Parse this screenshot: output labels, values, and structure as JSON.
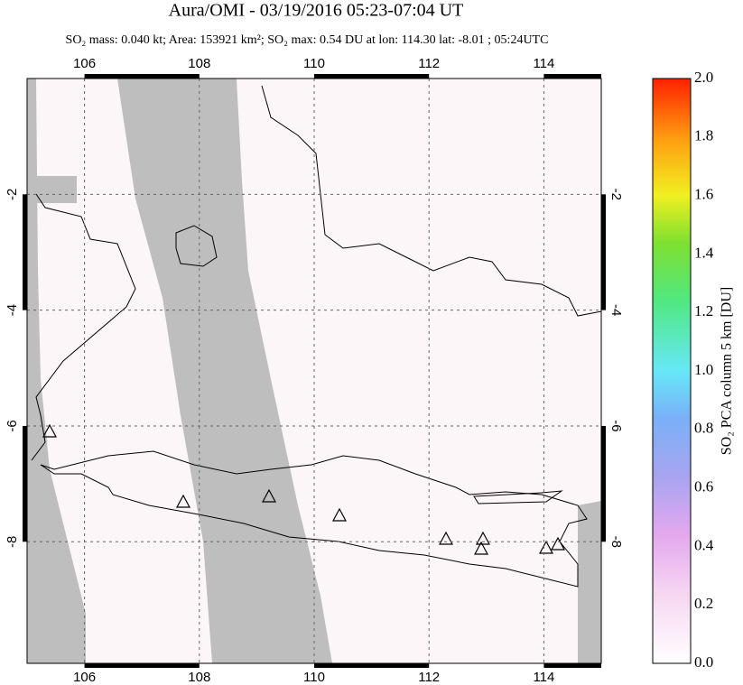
{
  "header": {
    "title": "Aura/OMI - 03/19/2016 05:23-07:04 UT",
    "subtitle": "SO₂ mass: 0.040 kt; Area: 153921 km²; SO₂ max: 0.54 DU at lon: 114.30 lat: -8.01 ; 05:24UTC"
  },
  "map": {
    "xlim": [
      105,
      115
    ],
    "ylim": [
      -10.1,
      0
    ],
    "xticks": [
      106,
      108,
      110,
      112,
      114
    ],
    "yticks": [
      -2,
      -4,
      -6,
      -8
    ]
  },
  "colorbar": {
    "label": "SO₂ PCA column 5 km [DU]",
    "lim": [
      0,
      2
    ],
    "ticks": [
      {
        "value": 0,
        "label": "0.0"
      },
      0.2,
      0.4,
      0.6,
      0.8,
      {
        "value": 1,
        "label": "1.0"
      },
      1.2,
      1.4,
      1.6,
      1.8,
      {
        "value": 2,
        "label": "2.0"
      }
    ]
  }
}
